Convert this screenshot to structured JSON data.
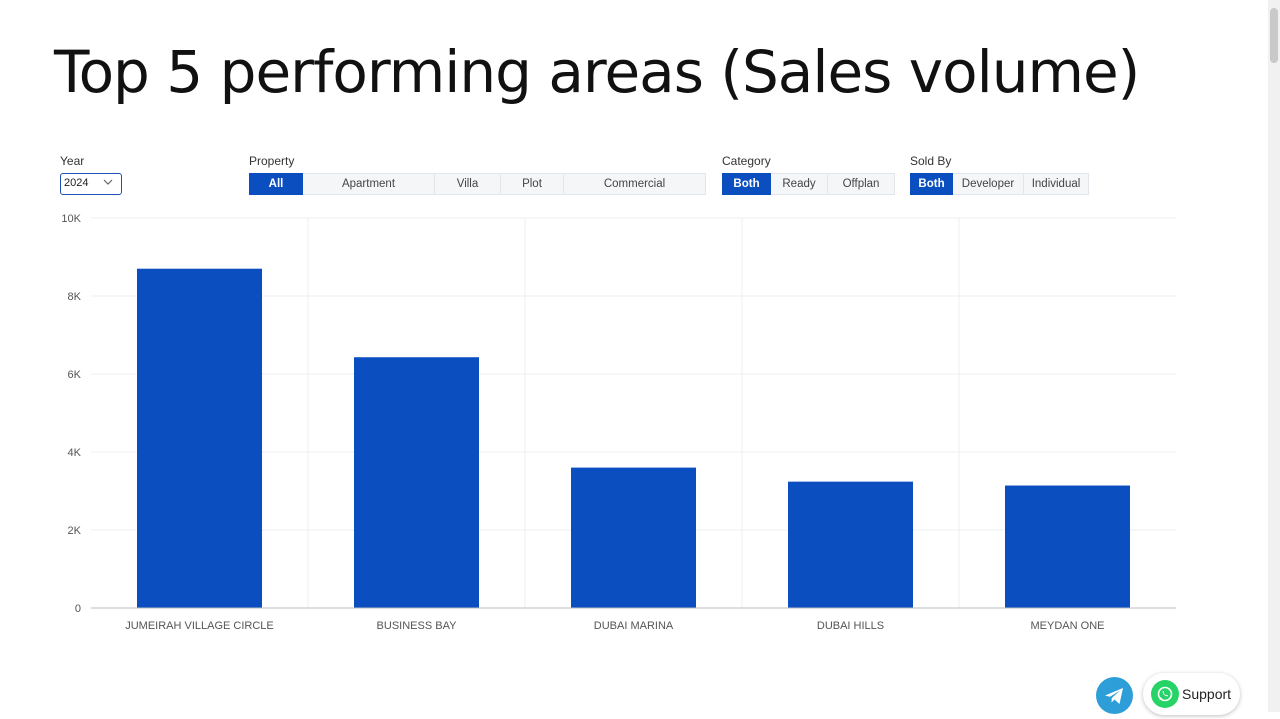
{
  "title": "Top 5 performing areas (Sales volume)",
  "filters": {
    "year": {
      "label": "Year",
      "value": "2024"
    },
    "property": {
      "label": "Property",
      "options": [
        "All",
        "Apartment",
        "Villa",
        "Plot",
        "Commercial"
      ],
      "selected": "All"
    },
    "category": {
      "label": "Category",
      "options": [
        "Both",
        "Ready",
        "Offplan"
      ],
      "selected": "Both"
    },
    "sold_by": {
      "label": "Sold By",
      "options": [
        "Both",
        "Developer",
        "Individual"
      ],
      "selected": "Both"
    }
  },
  "chart_data": {
    "type": "bar",
    "categories": [
      "JUMEIRAH VILLAGE CIRCLE",
      "BUSINESS BAY",
      "DUBAI MARINA",
      "DUBAI HILLS",
      "MEYDAN ONE"
    ],
    "values": [
      8700,
      6430,
      3600,
      3240,
      3140
    ],
    "ylim": [
      0,
      10000
    ],
    "yticks": [
      0,
      2000,
      4000,
      6000,
      8000,
      10000
    ],
    "ytick_labels": [
      "0",
      "2K",
      "4K",
      "6K",
      "8K",
      "10K"
    ],
    "bar_color": "#0b4ec0",
    "grid": true
  },
  "support": {
    "label": "Support"
  },
  "colors": {
    "accent": "#0b4ec0",
    "telegram": "#2d9ed8",
    "whatsapp": "#25d366"
  }
}
